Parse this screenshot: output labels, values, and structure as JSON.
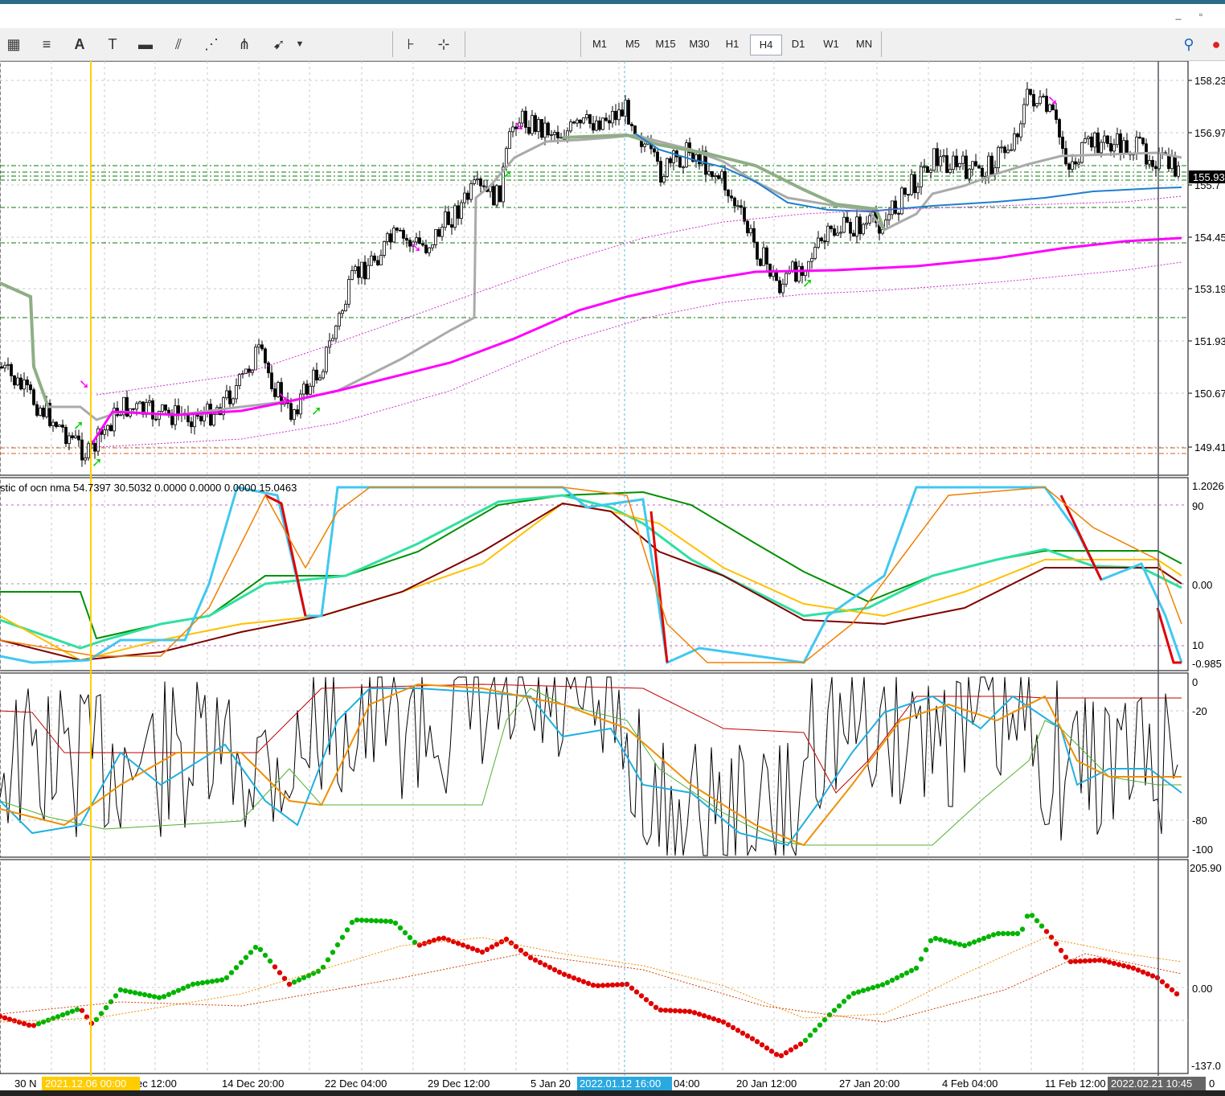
{
  "window_controls": {
    "minimize": "_",
    "restore": "▫"
  },
  "toolbar": {
    "tools": [
      "equidistant-channel-icon",
      "fibonacci-icon",
      "text-icon",
      "text-label-icon",
      "rectangle-icon",
      "parallel-lines-icon",
      "fibonacci-fan-icon",
      "andrews-pitchfork-icon",
      "arrow-tool-icon"
    ],
    "timeframes": [
      "M1",
      "M5",
      "M15",
      "M30",
      "H1",
      "H4",
      "D1",
      "W1",
      "MN"
    ],
    "active_timeframe": "H4"
  },
  "price_axis": {
    "labels": [
      "158.23",
      "156.97",
      "155.7",
      "154.45",
      "153.19",
      "151.93",
      "150.67",
      "149.41"
    ],
    "current_price": "155.93"
  },
  "stoch_panel": {
    "title": "stic of ocn nma 54.7397 30.5032 0.0000 0.0000 0.0000 15.0463",
    "scale": [
      "1.2026",
      "90",
      "0.00",
      "10",
      "-0.985"
    ]
  },
  "wpr_panel": {
    "scale": [
      "0",
      "-20",
      "-80",
      "-100"
    ]
  },
  "dots_panel": {
    "scale": [
      "205.90",
      "0.00",
      "-137.0"
    ]
  },
  "time_axis": {
    "labels": [
      "30 N",
      "ec 12:00",
      "14 Dec 20:00",
      "22 Dec 04:00",
      "29 Dec 12:00",
      "5 Jan 20",
      "04:00",
      "20 Jan 12:00",
      "27 Jan 20:00",
      "4 Feb 04:00",
      "11 Feb 12:00",
      "0"
    ],
    "cursor_labels": [
      "2021.12.06 00:00",
      "2022.01.12 16:00",
      "2022.02.21 10:45"
    ]
  },
  "colors": {
    "bull": "#00b400",
    "bear": "#e00000",
    "magenta": "#ff00ff",
    "gray_ma": "#8fae86",
    "blue_ma": "#1e7fd0"
  },
  "chart_data": {
    "type": "line",
    "title": "",
    "y_range": [
      148.9,
      159.0
    ],
    "price_levels": [
      158.23,
      156.97,
      155.7,
      154.45,
      153.19,
      151.93,
      150.67,
      149.41
    ],
    "current": 155.93
  }
}
